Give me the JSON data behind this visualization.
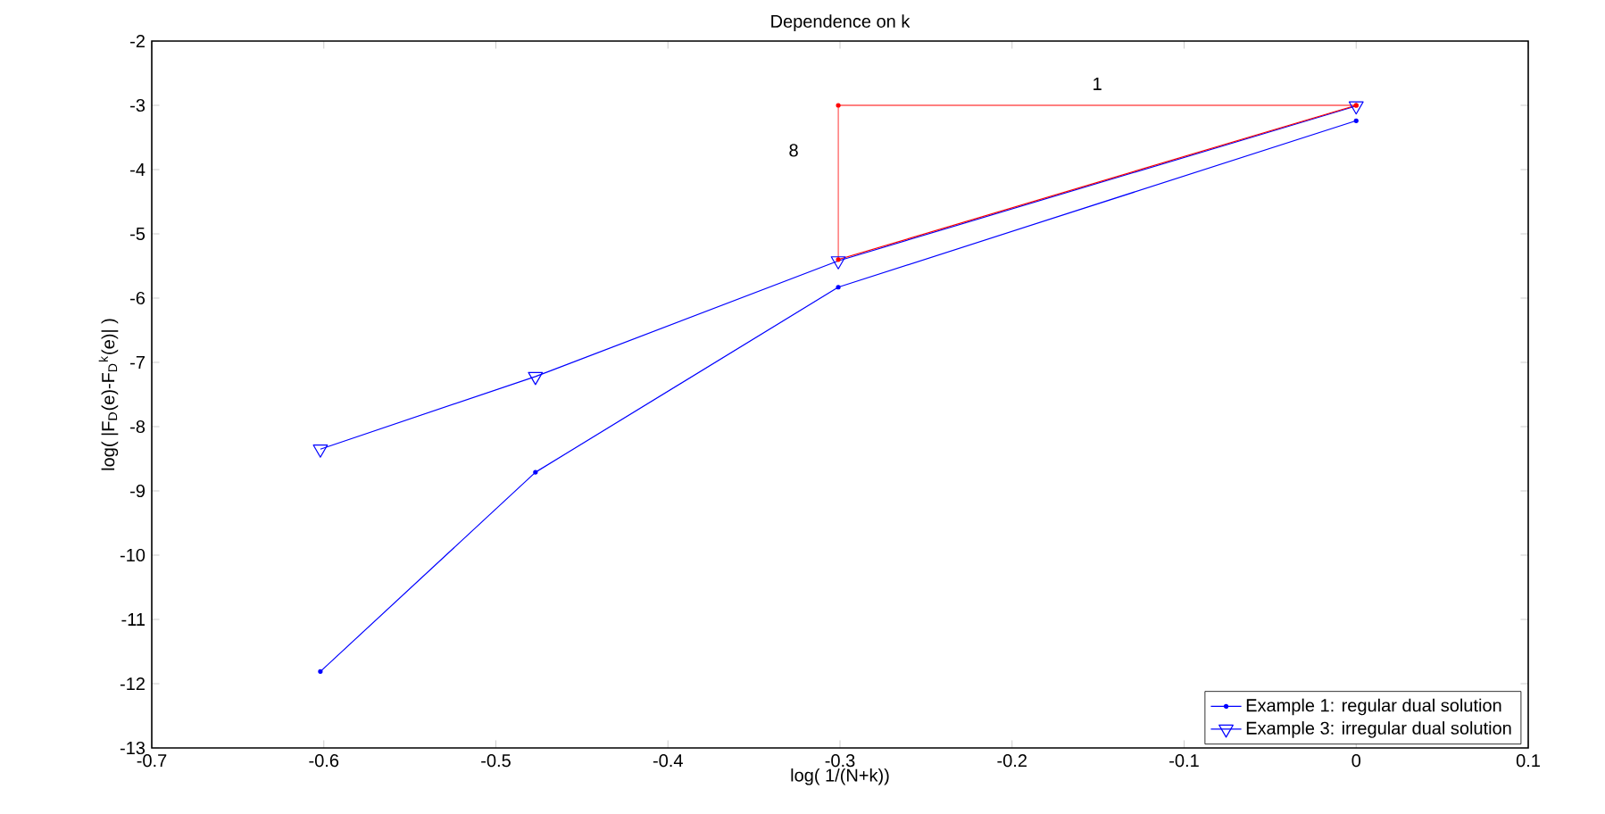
{
  "chart_data": {
    "type": "line",
    "title": "Dependence on k",
    "xlabel": "log( 1/(N+k))",
    "ylabel": "log( |F$_{D}$(e)-F$_{D}$$^{k}$(e)| )",
    "x": [
      -0.602,
      -0.477,
      -0.301,
      0
    ],
    "series": [
      {
        "name": "Example 1: regular dual solution",
        "color": "#0000ff",
        "marker": "circle",
        "values": [
          -11.81,
          -8.71,
          -5.83,
          -3.24
        ]
      },
      {
        "name": "Example 3: irregular dual solution",
        "color": "#0000ff",
        "marker": "triangle",
        "values": [
          -8.35,
          -7.22,
          -5.42,
          -3.01
        ]
      },
      {
        "color": "#ff0000",
        "marker": "circle",
        "values": [
          null,
          null,
          -3,
          -3
        ],
        "errors": [
          null,
          null,
          [
            -5.4,
            -3
          ],
          null
        ]
      },
      {
        "color": "#ff0000",
        "marker": "circle",
        "values": [
          null,
          null,
          -5.4,
          -3
        ]
      }
    ],
    "xlim": [
      -0.7,
      0.1
    ],
    "ylim": [
      -13,
      -2
    ],
    "xticks": [
      -0.7,
      -0.6,
      -0.5,
      -0.4,
      -0.3,
      -0.2,
      -0.1,
      0,
      0.1
    ],
    "yticks": [
      -13,
      -12,
      -11,
      -10,
      -9,
      -8,
      -7,
      -6,
      -5,
      -4,
      -3,
      -2
    ],
    "annotations": [
      "1",
      "8"
    ],
    "legend": "bottom right",
    "grid": false,
    "line_style": "solid"
  }
}
